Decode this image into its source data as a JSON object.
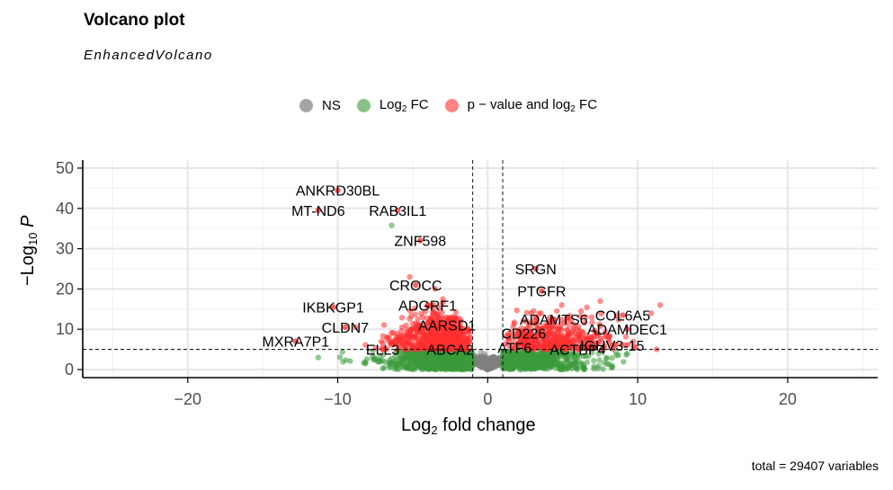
{
  "header": {
    "title": "Volcano plot",
    "subtitle": "EnhancedVolcano",
    "caption": "total = 29407 variables"
  },
  "legend": {
    "items": [
      {
        "key": "ns",
        "label": "NS",
        "color": "#7f7f7f"
      },
      {
        "key": "fc",
        "label_prefix": "Log",
        "label_sub": "2",
        "label_suffix": " FC",
        "color": "#3a9a3a"
      },
      {
        "key": "pfc",
        "label_prefix": "p − value and log",
        "label_sub": "2",
        "label_suffix": " FC",
        "color": "#ff3030"
      }
    ]
  },
  "axes": {
    "xlabel_prefix": "Log",
    "xlabel_sub": "2",
    "xlabel_suffix": " fold change",
    "ylabel_prefix": "−Log",
    "ylabel_sub": "10",
    "ylabel_suffix": " P"
  },
  "chart_data": {
    "type": "scatter",
    "title": "Volcano plot",
    "subtitle": "EnhancedVolcano",
    "caption": "total = 29407 variables",
    "xlabel": "Log2 fold change",
    "ylabel": "-Log10 P",
    "xlim": [
      -27,
      26
    ],
    "ylim": [
      -2,
      52
    ],
    "x_ticks": [
      -20,
      -10,
      0,
      10,
      20
    ],
    "y_ticks": [
      0,
      10,
      20,
      30,
      40,
      50
    ],
    "grid": true,
    "legend_position": "top",
    "thresholds": {
      "log2fc": [
        -1,
        1
      ],
      "neg_log10_p": 5
    },
    "colors": {
      "ns": "#7f7f7f",
      "fc": "#3a9a3a",
      "pfc": "#ff3030"
    },
    "labeled_points": [
      {
        "label": "ANKRD30BL",
        "x": -10.0,
        "y": 44.5
      },
      {
        "label": "MT-ND6",
        "x": -11.3,
        "y": 39.5
      },
      {
        "label": "RAB3IL1",
        "x": -6.0,
        "y": 39.5
      },
      {
        "label": "ZNF598",
        "x": -4.5,
        "y": 32.0
      },
      {
        "label": "CROCC",
        "x": -4.8,
        "y": 21.0
      },
      {
        "label": "ADGRF1",
        "x": -4.0,
        "y": 16.0
      },
      {
        "label": "IKBKGP1",
        "x": -10.3,
        "y": 15.5
      },
      {
        "label": "CLDN7",
        "x": -9.5,
        "y": 10.5
      },
      {
        "label": "AARSD1",
        "x": -2.7,
        "y": 11.0
      },
      {
        "label": "MXRA7P1",
        "x": -12.8,
        "y": 7.0
      },
      {
        "label": "ELL3",
        "x": -7.0,
        "y": 5.0
      },
      {
        "label": "ABCA2",
        "x": -2.5,
        "y": 5.0
      },
      {
        "label": "SRGN",
        "x": 3.2,
        "y": 25.0
      },
      {
        "label": "PTGFR",
        "x": 3.6,
        "y": 19.5
      },
      {
        "label": "ADAMTS6",
        "x": 4.4,
        "y": 12.5
      },
      {
        "label": "COL6A5",
        "x": 9.0,
        "y": 13.5
      },
      {
        "label": "CD226",
        "x": 2.4,
        "y": 9.0
      },
      {
        "label": "ADAMDEC1",
        "x": 9.3,
        "y": 10.0
      },
      {
        "label": "ATF6",
        "x": 1.8,
        "y": 5.5
      },
      {
        "label": "ACTBP4",
        "x": 6.0,
        "y": 5.0
      },
      {
        "label": "IGHV3-15",
        "x": 8.3,
        "y": 6.0
      }
    ]
  }
}
